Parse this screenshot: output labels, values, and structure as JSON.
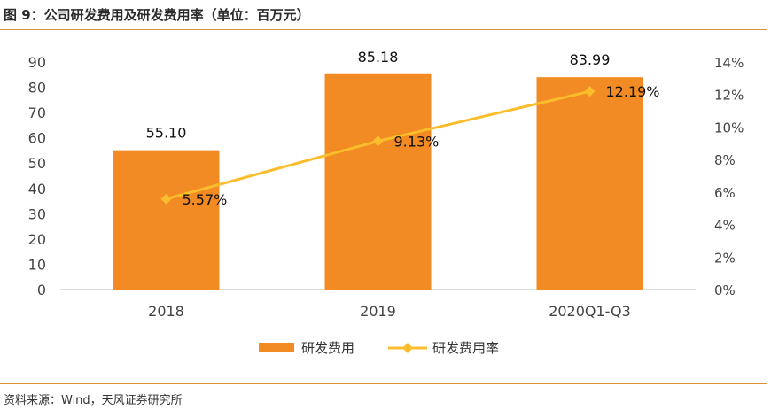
{
  "title": "图 9：公司研发费用及研发费用率（单位：百万元）",
  "source": "资料来源：Wind，天风证券研究所",
  "colors": {
    "bar": "#f28b24",
    "line": "#fbbd2c",
    "accent_rule": "#d9923a",
    "axis_text": "#444444",
    "label_text": "#111111"
  },
  "chart_data": {
    "type": "bar",
    "categories": [
      "2018",
      "2019",
      "2020Q1-Q3"
    ],
    "series": [
      {
        "name": "研发费用",
        "type": "bar",
        "axis": "left",
        "values": [
          55.1,
          85.18,
          83.99
        ],
        "labels": [
          "55.10",
          "85.18",
          "83.99"
        ]
      },
      {
        "name": "研发费用率",
        "type": "line",
        "axis": "right",
        "values": [
          5.57,
          9.13,
          12.19
        ],
        "labels": [
          "5.57%",
          "9.13%",
          "12.19%"
        ]
      }
    ],
    "y_left": {
      "min": 0,
      "max": 90,
      "ticks": [
        "0",
        "10",
        "20",
        "30",
        "40",
        "50",
        "60",
        "70",
        "80",
        "90"
      ]
    },
    "y_right": {
      "min": 0,
      "max": 14,
      "ticks": [
        "0%",
        "2%",
        "4%",
        "6%",
        "8%",
        "10%",
        "12%",
        "14%"
      ]
    },
    "grid": false,
    "legend_position": "bottom"
  }
}
